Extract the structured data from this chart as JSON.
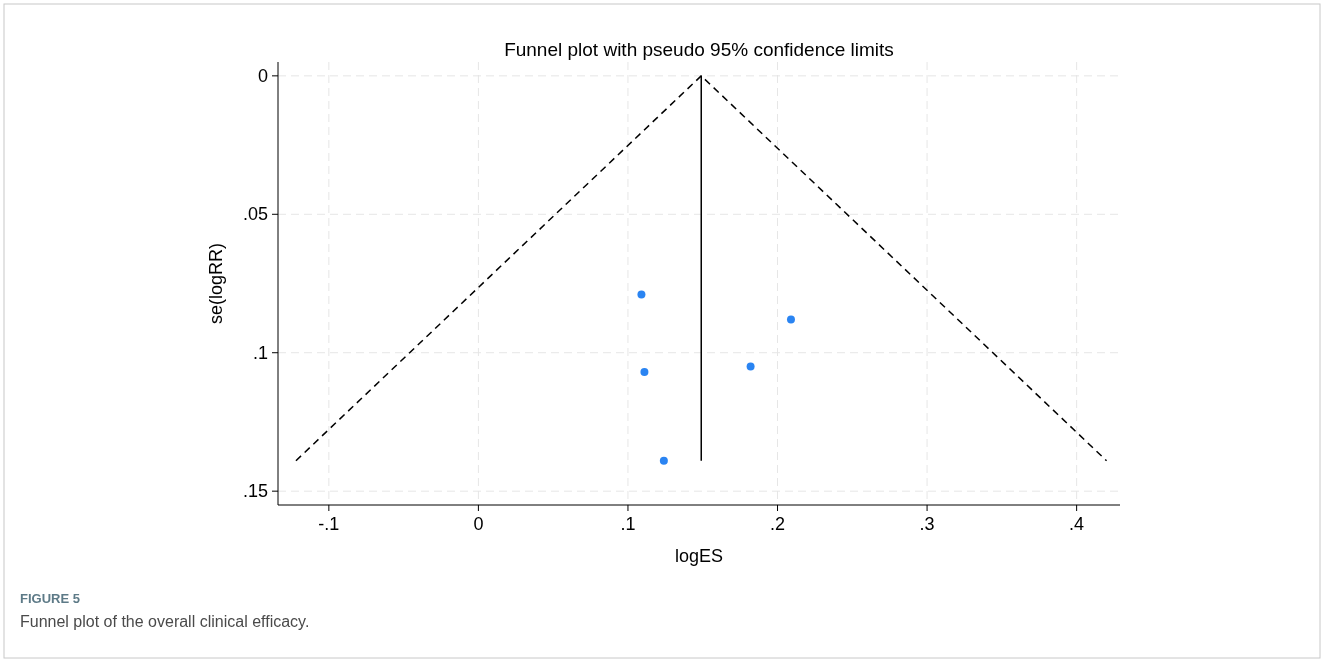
{
  "chart_data": {
    "type": "scatter",
    "title": "Funnel plot with pseudo 95% confidence limits",
    "xlabel": "logES",
    "ylabel": "se(logRR)",
    "annotations": [
      "FIGURE 5",
      "Funnel plot of the overall clinical efficacy."
    ],
    "xlim": [
      -0.134,
      0.429
    ],
    "ylim": [
      0.155,
      -0.005
    ],
    "xticks": [
      {
        "value": -0.1,
        "label": "-.1"
      },
      0,
      {
        "value": 0.1,
        "label": ".1"
      },
      {
        "value": 0.2,
        "label": ".2"
      },
      {
        "value": 0.3,
        "label": ".3"
      },
      {
        "value": 0.4,
        "label": ".4"
      }
    ],
    "yticks": [
      0,
      {
        "value": 0.05,
        "label": ".05"
      },
      {
        "value": 0.1,
        "label": ".1"
      },
      {
        "value": 0.15,
        "label": ".15"
      }
    ],
    "grid": true,
    "series": [
      {
        "type": "line",
        "color": "#000000",
        "line_style": "dashed",
        "x": [
          -0.122,
          0.149,
          0.42
        ],
        "values": [
          0.139,
          0,
          0.139
        ]
      },
      {
        "type": "line",
        "color": "#000000",
        "line_style": "solid",
        "x": [
          0.149,
          0.149
        ],
        "values": [
          0,
          0.139
        ]
      },
      {
        "color": "#2a84f2",
        "marker": "circle",
        "x": [
          0.109,
          0.111,
          0.124,
          0.182,
          0.209
        ],
        "values": [
          0.079,
          0.107,
          0.139,
          0.105,
          0.088
        ]
      }
    ]
  }
}
